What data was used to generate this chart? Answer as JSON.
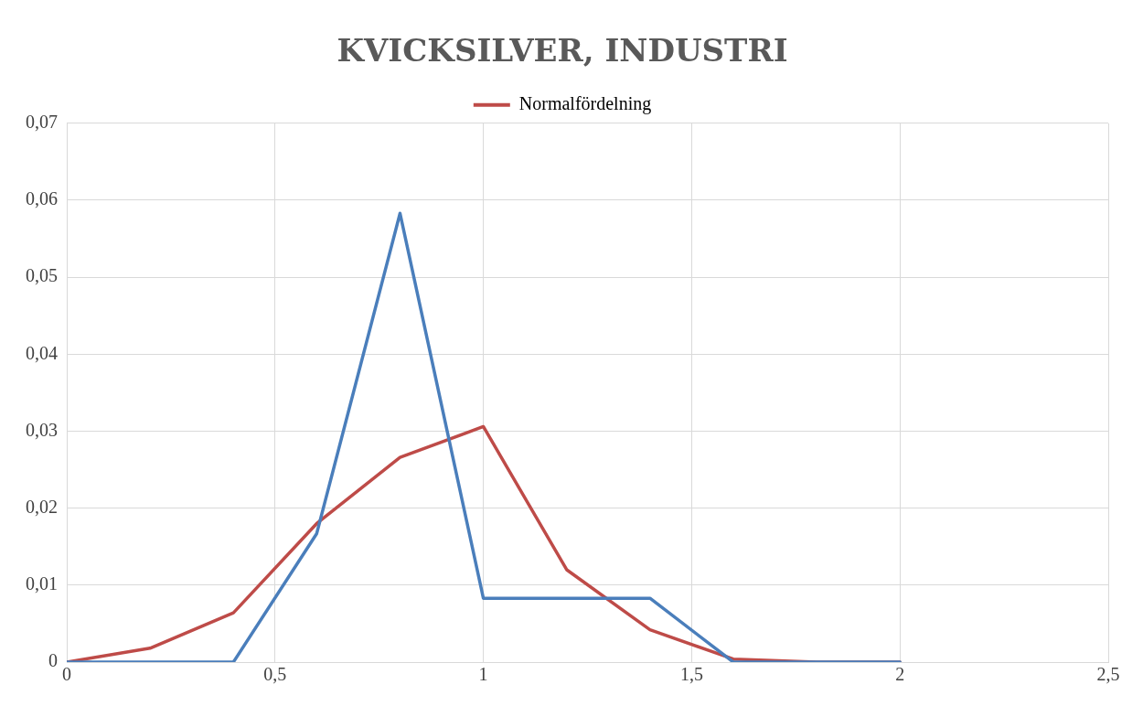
{
  "chart_data": {
    "type": "line",
    "title": "KVICKSILVER, INDUSTRI",
    "x": [
      0,
      0.2,
      0.4,
      0.6,
      0.8,
      1.0,
      1.2,
      1.4,
      1.6,
      1.8,
      2.0
    ],
    "series": [
      {
        "color": "#4a7ebb",
        "values": [
          0,
          0,
          0,
          0.0167,
          0.0583,
          0.0083,
          0.0083,
          0.0083,
          0,
          0,
          0
        ]
      },
      {
        "name": "Normalfördelning",
        "color": "#be4b48",
        "values": [
          0,
          0.0018,
          0.0064,
          0.018,
          0.0266,
          0.0306,
          0.012,
          0.0042,
          0.0004,
          0,
          0
        ]
      }
    ],
    "xlim": [
      0,
      2.5
    ],
    "xticks": [
      0,
      {
        "value": 0.5,
        "label": "0,5"
      },
      1,
      {
        "value": 1.5,
        "label": "1,5"
      },
      2,
      {
        "value": 2.5,
        "label": "2,5"
      }
    ],
    "ylim": [
      0,
      0.07
    ],
    "yticks": [
      0,
      {
        "value": 0.01,
        "label": "0,01"
      },
      {
        "value": 0.02,
        "label": "0,02"
      },
      {
        "value": 0.03,
        "label": "0,03"
      },
      {
        "value": 0.04,
        "label": "0,04"
      },
      {
        "value": 0.05,
        "label": "0,05"
      },
      {
        "value": 0.06,
        "label": "0,06"
      },
      {
        "value": 0.07,
        "label": "0,07"
      }
    ],
    "grid": true,
    "legend": "top",
    "marker": "none",
    "line_style": "solid"
  }
}
